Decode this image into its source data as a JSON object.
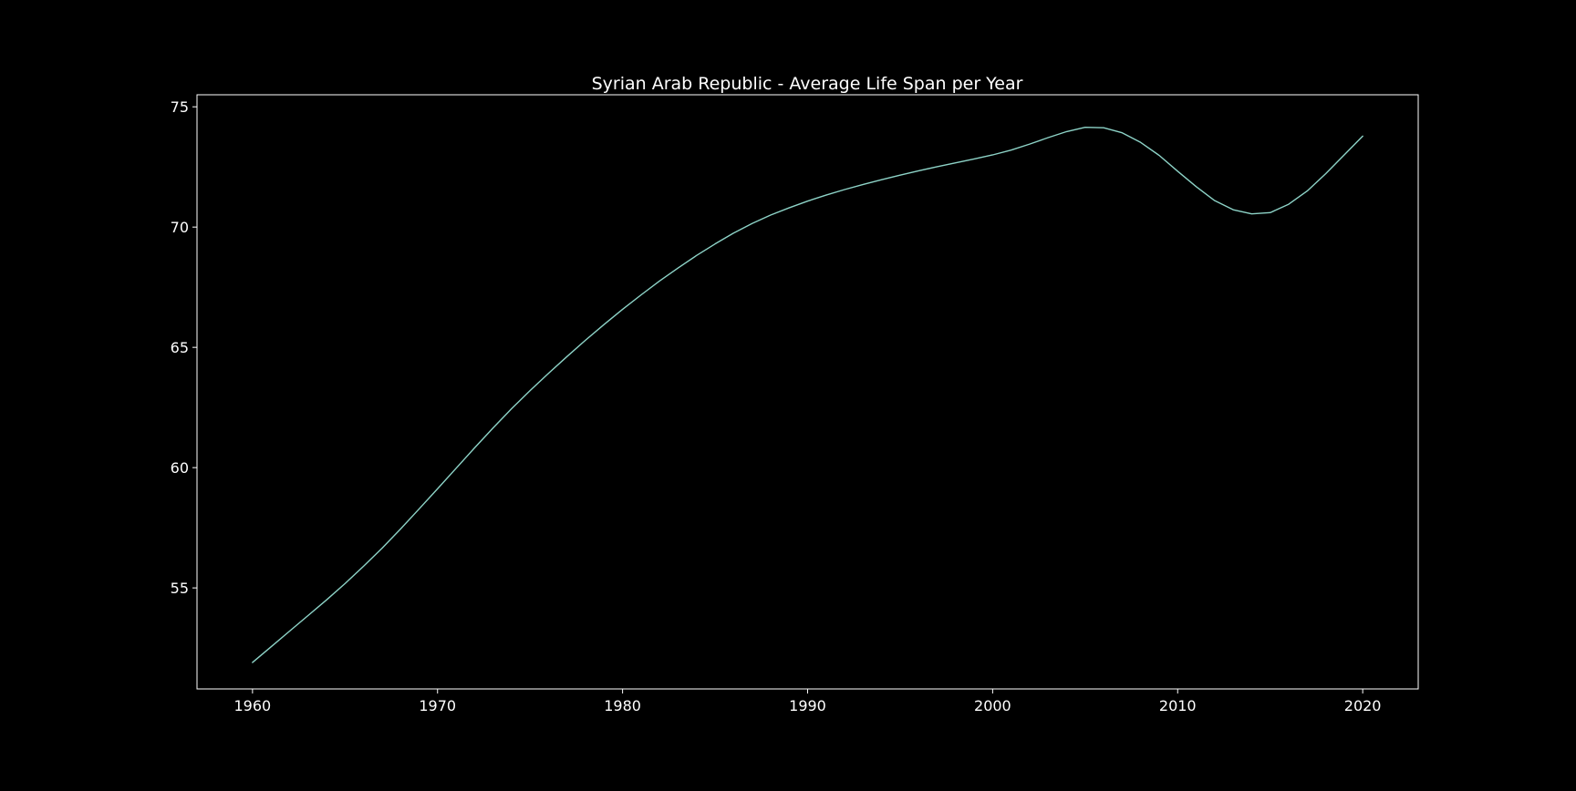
{
  "chart_data": {
    "type": "line",
    "title": "Syrian Arab Republic - Average Life Span per Year",
    "xlabel": "",
    "ylabel": "",
    "xlim": [
      1957,
      2023
    ],
    "ylim": [
      50.8,
      75.5
    ],
    "xticks": [
      1960,
      1970,
      1980,
      1990,
      2000,
      2010,
      2020
    ],
    "yticks": [
      55,
      60,
      65,
      70,
      75
    ],
    "grid": false,
    "legend": "none",
    "colors": {
      "background": "#000000",
      "line": "#8dd3c7",
      "axes": "#ffffff",
      "text": "#ffffff"
    },
    "series": [
      {
        "x": [
          1960,
          1961,
          1962,
          1963,
          1964,
          1965,
          1966,
          1967,
          1968,
          1969,
          1970,
          1971,
          1972,
          1973,
          1974,
          1975,
          1976,
          1977,
          1978,
          1979,
          1980,
          1981,
          1982,
          1983,
          1984,
          1985,
          1986,
          1987,
          1988,
          1989,
          1990,
          1991,
          1992,
          1993,
          1994,
          1995,
          1996,
          1997,
          1998,
          1999,
          2000,
          2001,
          2002,
          2003,
          2004,
          2005,
          2006,
          2007,
          2008,
          2009,
          2010,
          2011,
          2012,
          2013,
          2014,
          2015,
          2016,
          2017,
          2018,
          2019,
          2020
        ],
        "values": [
          51.9,
          52.55,
          53.2,
          53.85,
          54.5,
          55.18,
          55.9,
          56.65,
          57.45,
          58.28,
          59.12,
          59.97,
          60.82,
          61.65,
          62.45,
          63.2,
          63.92,
          64.62,
          65.3,
          65.95,
          66.58,
          67.18,
          67.76,
          68.3,
          68.82,
          69.3,
          69.75,
          70.15,
          70.5,
          70.8,
          71.08,
          71.33,
          71.56,
          71.77,
          71.97,
          72.16,
          72.34,
          72.51,
          72.67,
          72.83,
          73.0,
          73.2,
          73.45,
          73.72,
          73.97,
          74.15,
          74.13,
          73.92,
          73.52,
          72.98,
          72.32,
          71.68,
          71.1,
          70.72,
          70.55,
          70.6,
          70.95,
          71.5,
          72.22,
          73.0,
          73.78
        ]
      }
    ]
  }
}
